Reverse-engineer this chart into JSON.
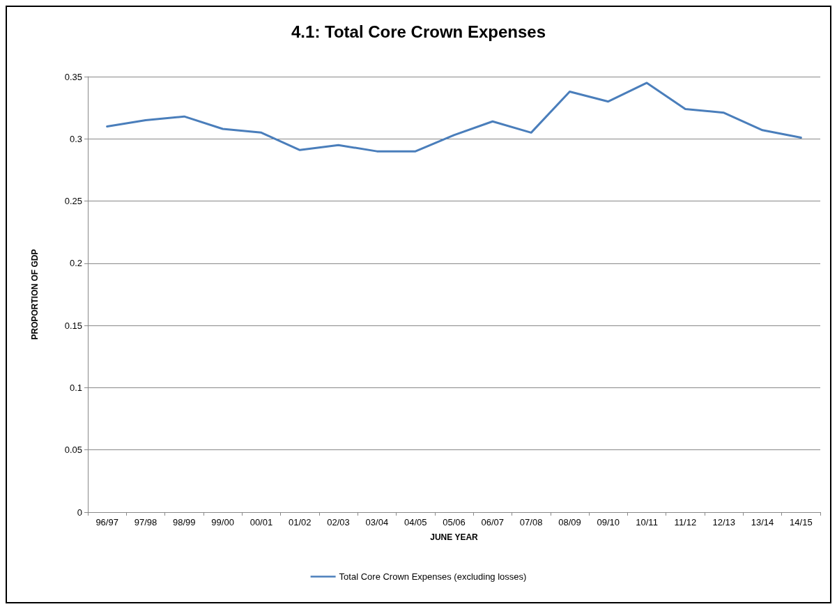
{
  "chart_data": {
    "type": "line",
    "title": "4.1: Total Core Crown Expenses",
    "xlabel": "JUNE YEAR",
    "ylabel": "PROPORTION OF GDP",
    "categories": [
      "96/97",
      "97/98",
      "98/99",
      "99/00",
      "00/01",
      "01/02",
      "02/03",
      "03/04",
      "04/05",
      "05/06",
      "06/07",
      "07/08",
      "08/09",
      "09/10",
      "10/11",
      "11/12",
      "12/13",
      "13/14",
      "14/15"
    ],
    "series": [
      {
        "name": "Total Core Crown Expenses (excluding losses)",
        "color": "#4a7ebb",
        "values": [
          0.31,
          0.315,
          0.318,
          0.308,
          0.305,
          0.291,
          0.295,
          0.29,
          0.29,
          0.303,
          0.314,
          0.305,
          0.338,
          0.33,
          0.345,
          0.324,
          0.321,
          0.307,
          0.301
        ]
      }
    ],
    "ylim": [
      0,
      0.35
    ],
    "yticks": [
      0,
      0.05,
      0.1,
      0.15,
      0.2,
      0.25,
      0.3,
      0.35
    ],
    "grid": "y",
    "legend": "bottom",
    "marker": "none",
    "line_style": "solid"
  }
}
